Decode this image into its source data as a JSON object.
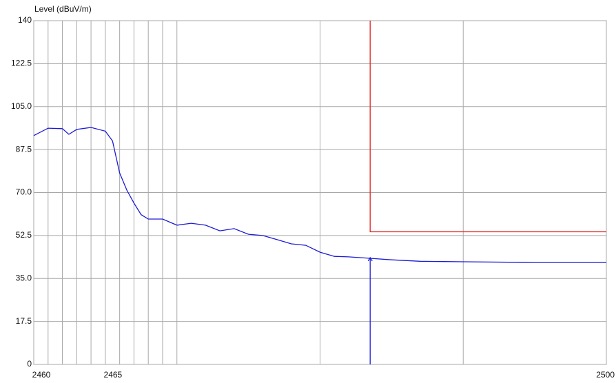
{
  "chart_data": {
    "type": "line",
    "y_axis_label": "Level (dBuV/m)",
    "xlim": [
      2460,
      2500
    ],
    "xticks": [
      2460,
      2465,
      2500
    ],
    "xgrid": [
      2460,
      2461,
      2462,
      2463,
      2464,
      2465,
      2466,
      2467,
      2468,
      2469,
      2470,
      2480,
      2490,
      2500
    ],
    "ylim": [
      0,
      140
    ],
    "yticks": [
      0,
      17.5,
      {
        "value": 35,
        "label": "35.0"
      },
      52.5,
      {
        "value": 70,
        "label": "70.0"
      },
      87.5,
      {
        "value": 105,
        "label": "105.0"
      },
      122.5,
      140
    ],
    "grid": true,
    "series": [
      {
        "color": "#1a1ad6",
        "x": [
          2460,
          2461,
          2462,
          2462.45,
          2463,
          2464,
          2465,
          2465.5,
          2466,
          2466.5,
          2467,
          2467.5,
          2468,
          2469,
          2470,
          2471,
          2472,
          2473,
          2474,
          2475,
          2476,
          2477,
          2478,
          2479,
          2480,
          2481,
          2482,
          2483.5,
          2485,
          2487,
          2490,
          2495,
          2500
        ],
        "values": [
          93.2,
          96.2,
          96,
          93.7,
          95.7,
          96.5,
          95,
          91,
          78,
          71,
          65.7,
          61,
          59.2,
          59.2,
          56.7,
          57.5,
          56.7,
          54.4,
          55.3,
          53,
          52.5,
          50.8,
          49.1,
          48.5,
          45.7,
          44,
          43.8,
          43.2,
          42.6,
          42,
          41.8,
          41.5,
          41.5
        ]
      },
      {
        "color": "#e02020",
        "x": [
          2483.5,
          2483.5,
          2500
        ],
        "values": [
          140,
          54,
          54
        ]
      }
    ],
    "marker": {
      "color": "#1a1ad6",
      "x": 2483.5,
      "value": 43.5
    }
  }
}
